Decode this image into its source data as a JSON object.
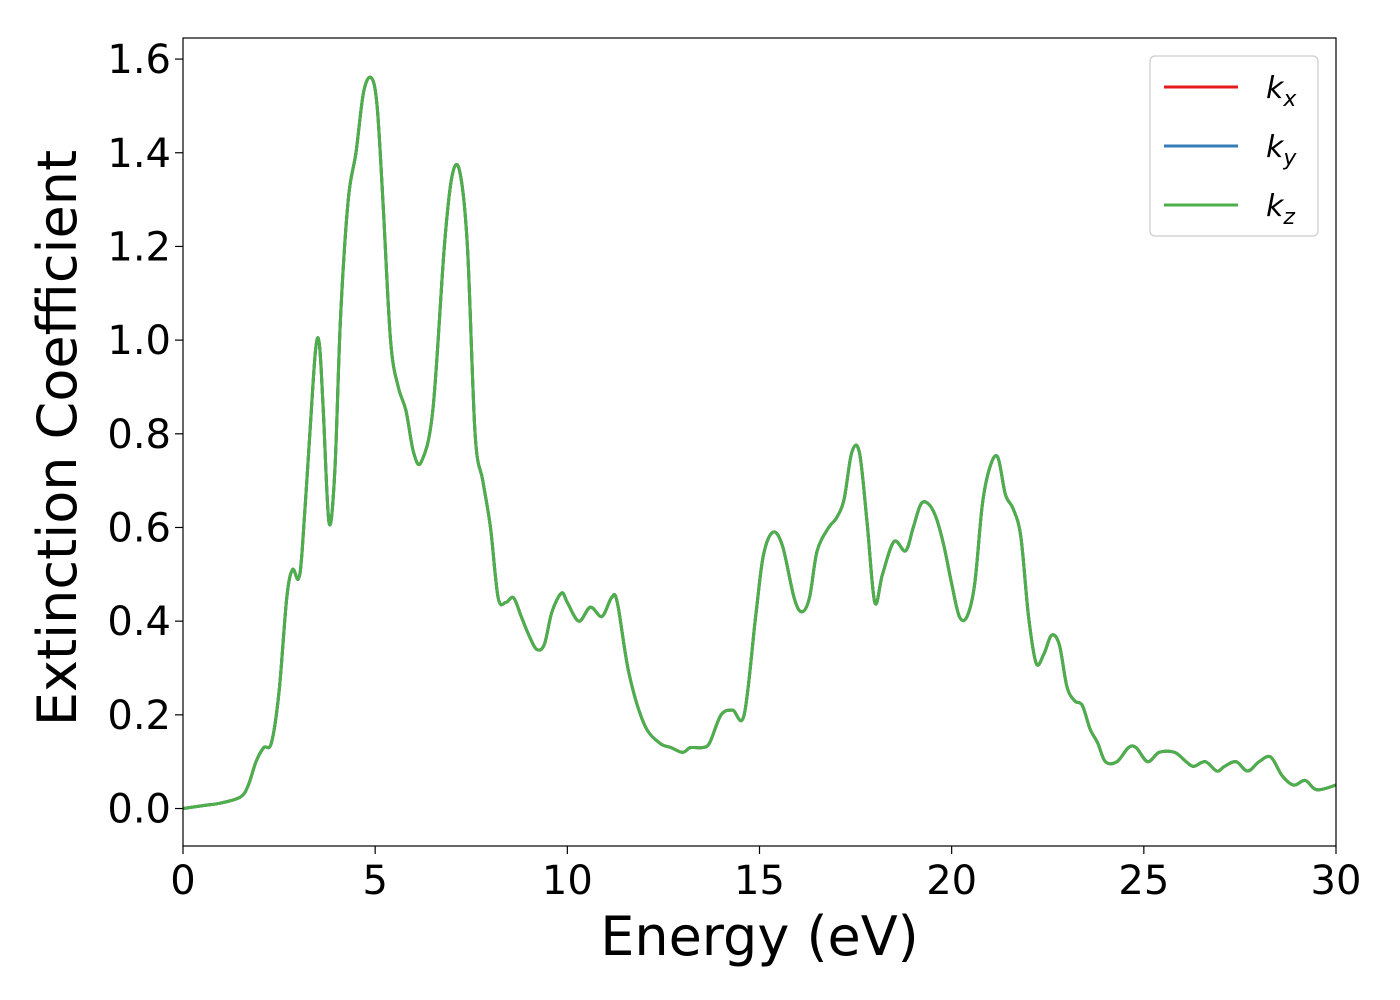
{
  "chart_data": {
    "type": "line",
    "title": "",
    "xlabel": "Energy (eV)",
    "ylabel": "Extinction Coefficient",
    "xlim": [
      0,
      30
    ],
    "ylim": [
      -0.08,
      1.645
    ],
    "xticks": [
      0,
      5,
      10,
      15,
      20,
      25,
      30
    ],
    "xtick_labels": [
      "0",
      "5",
      "10",
      "15",
      "20",
      "25",
      "30"
    ],
    "yticks": [
      0.0,
      0.2,
      0.4,
      0.6,
      0.8,
      1.0,
      1.2,
      1.4,
      1.6
    ],
    "ytick_labels": [
      "0.0",
      "0.2",
      "0.4",
      "0.6",
      "0.8",
      "1.0",
      "1.2",
      "1.4",
      "1.6"
    ],
    "grid": false,
    "legend_position": "top-right",
    "x": [
      0,
      0.5,
      1.0,
      1.5,
      1.7,
      1.9,
      2.1,
      2.3,
      2.5,
      2.7,
      2.85,
      3.0,
      3.1,
      3.3,
      3.45,
      3.55,
      3.65,
      3.8,
      3.95,
      4.1,
      4.3,
      4.5,
      4.7,
      4.9,
      5.05,
      5.2,
      5.4,
      5.6,
      5.8,
      6.0,
      6.2,
      6.5,
      6.8,
      7.0,
      7.2,
      7.4,
      7.6,
      7.8,
      8.0,
      8.2,
      8.4,
      8.6,
      8.8,
      9.0,
      9.2,
      9.4,
      9.6,
      9.85,
      10.0,
      10.3,
      10.6,
      10.9,
      11.15,
      11.3,
      11.6,
      12.0,
      12.4,
      12.7,
      13.0,
      13.2,
      13.5,
      13.7,
      14.0,
      14.3,
      14.6,
      14.9,
      15.1,
      15.35,
      15.6,
      15.9,
      16.1,
      16.3,
      16.5,
      16.8,
      17.0,
      17.2,
      17.4,
      17.6,
      17.8,
      18.0,
      18.2,
      18.5,
      18.8,
      19.0,
      19.2,
      19.4,
      19.6,
      19.8,
      20.0,
      20.2,
      20.4,
      20.6,
      20.8,
      21.0,
      21.2,
      21.4,
      21.6,
      21.8,
      22.0,
      22.2,
      22.4,
      22.6,
      22.8,
      23.0,
      23.2,
      23.4,
      23.6,
      23.8,
      24.0,
      24.3,
      24.6,
      24.8,
      25.1,
      25.4,
      25.8,
      26.1,
      26.3,
      26.6,
      26.9,
      27.1,
      27.4,
      27.7,
      28.0,
      28.3,
      28.6,
      28.9,
      29.2,
      29.5,
      30.0
    ],
    "series": [
      {
        "name": "k_x",
        "color": "#e41a1c",
        "values": [
          0.0,
          0.006,
          0.012,
          0.025,
          0.05,
          0.1,
          0.13,
          0.14,
          0.25,
          0.45,
          0.51,
          0.49,
          0.55,
          0.8,
          0.98,
          0.99,
          0.85,
          0.61,
          0.72,
          1.05,
          1.3,
          1.4,
          1.53,
          1.56,
          1.5,
          1.3,
          1.0,
          0.9,
          0.85,
          0.76,
          0.74,
          0.85,
          1.2,
          1.35,
          1.36,
          1.2,
          0.8,
          0.7,
          0.6,
          0.45,
          0.44,
          0.45,
          0.41,
          0.37,
          0.34,
          0.35,
          0.42,
          0.46,
          0.44,
          0.4,
          0.43,
          0.41,
          0.45,
          0.44,
          0.29,
          0.18,
          0.14,
          0.13,
          0.12,
          0.13,
          0.13,
          0.14,
          0.2,
          0.21,
          0.2,
          0.41,
          0.54,
          0.59,
          0.56,
          0.45,
          0.42,
          0.45,
          0.55,
          0.6,
          0.62,
          0.66,
          0.76,
          0.76,
          0.61,
          0.44,
          0.5,
          0.57,
          0.55,
          0.6,
          0.65,
          0.65,
          0.62,
          0.56,
          0.48,
          0.41,
          0.41,
          0.48,
          0.65,
          0.73,
          0.75,
          0.67,
          0.64,
          0.58,
          0.41,
          0.31,
          0.33,
          0.37,
          0.35,
          0.26,
          0.23,
          0.22,
          0.17,
          0.14,
          0.1,
          0.1,
          0.13,
          0.13,
          0.1,
          0.12,
          0.12,
          0.1,
          0.09,
          0.1,
          0.08,
          0.09,
          0.1,
          0.08,
          0.1,
          0.11,
          0.07,
          0.05,
          0.06,
          0.04,
          0.05
        ]
      },
      {
        "name": "k_y",
        "color": "#377eb8",
        "values": [
          0.0,
          0.006,
          0.012,
          0.025,
          0.05,
          0.1,
          0.13,
          0.14,
          0.25,
          0.45,
          0.51,
          0.49,
          0.55,
          0.8,
          0.98,
          0.99,
          0.85,
          0.61,
          0.72,
          1.05,
          1.3,
          1.4,
          1.53,
          1.56,
          1.5,
          1.3,
          1.0,
          0.9,
          0.85,
          0.76,
          0.74,
          0.85,
          1.2,
          1.35,
          1.36,
          1.2,
          0.8,
          0.7,
          0.6,
          0.45,
          0.44,
          0.45,
          0.41,
          0.37,
          0.34,
          0.35,
          0.42,
          0.46,
          0.44,
          0.4,
          0.43,
          0.41,
          0.45,
          0.44,
          0.29,
          0.18,
          0.14,
          0.13,
          0.12,
          0.13,
          0.13,
          0.14,
          0.2,
          0.21,
          0.2,
          0.41,
          0.54,
          0.59,
          0.56,
          0.45,
          0.42,
          0.45,
          0.55,
          0.6,
          0.62,
          0.66,
          0.76,
          0.76,
          0.61,
          0.44,
          0.5,
          0.57,
          0.55,
          0.6,
          0.65,
          0.65,
          0.62,
          0.56,
          0.48,
          0.41,
          0.41,
          0.48,
          0.65,
          0.73,
          0.75,
          0.67,
          0.64,
          0.58,
          0.41,
          0.31,
          0.33,
          0.37,
          0.35,
          0.26,
          0.23,
          0.22,
          0.17,
          0.14,
          0.1,
          0.1,
          0.13,
          0.13,
          0.1,
          0.12,
          0.12,
          0.1,
          0.09,
          0.1,
          0.08,
          0.09,
          0.1,
          0.08,
          0.1,
          0.11,
          0.07,
          0.05,
          0.06,
          0.04,
          0.05
        ]
      },
      {
        "name": "k_z",
        "color": "#4daf4a",
        "values": [
          0.0,
          0.006,
          0.012,
          0.025,
          0.05,
          0.1,
          0.13,
          0.14,
          0.25,
          0.45,
          0.51,
          0.49,
          0.55,
          0.8,
          0.98,
          0.99,
          0.85,
          0.61,
          0.72,
          1.05,
          1.3,
          1.4,
          1.53,
          1.56,
          1.5,
          1.3,
          1.0,
          0.9,
          0.85,
          0.76,
          0.74,
          0.85,
          1.2,
          1.35,
          1.36,
          1.2,
          0.8,
          0.7,
          0.6,
          0.45,
          0.44,
          0.45,
          0.41,
          0.37,
          0.34,
          0.35,
          0.42,
          0.46,
          0.44,
          0.4,
          0.43,
          0.41,
          0.45,
          0.44,
          0.29,
          0.18,
          0.14,
          0.13,
          0.12,
          0.13,
          0.13,
          0.14,
          0.2,
          0.21,
          0.2,
          0.41,
          0.54,
          0.59,
          0.56,
          0.45,
          0.42,
          0.45,
          0.55,
          0.6,
          0.62,
          0.66,
          0.76,
          0.76,
          0.61,
          0.44,
          0.5,
          0.57,
          0.55,
          0.6,
          0.65,
          0.65,
          0.62,
          0.56,
          0.48,
          0.41,
          0.41,
          0.48,
          0.65,
          0.73,
          0.75,
          0.67,
          0.64,
          0.58,
          0.41,
          0.31,
          0.33,
          0.37,
          0.35,
          0.26,
          0.23,
          0.22,
          0.17,
          0.14,
          0.1,
          0.1,
          0.13,
          0.13,
          0.1,
          0.12,
          0.12,
          0.1,
          0.09,
          0.1,
          0.08,
          0.09,
          0.1,
          0.08,
          0.1,
          0.11,
          0.07,
          0.05,
          0.06,
          0.04,
          0.05
        ]
      }
    ],
    "legend": [
      {
        "symbol": "k",
        "sub": "x",
        "color": "#e41a1c"
      },
      {
        "symbol": "k",
        "sub": "y",
        "color": "#377eb8"
      },
      {
        "symbol": "k",
        "sub": "z",
        "color": "#4daf4a"
      }
    ]
  }
}
